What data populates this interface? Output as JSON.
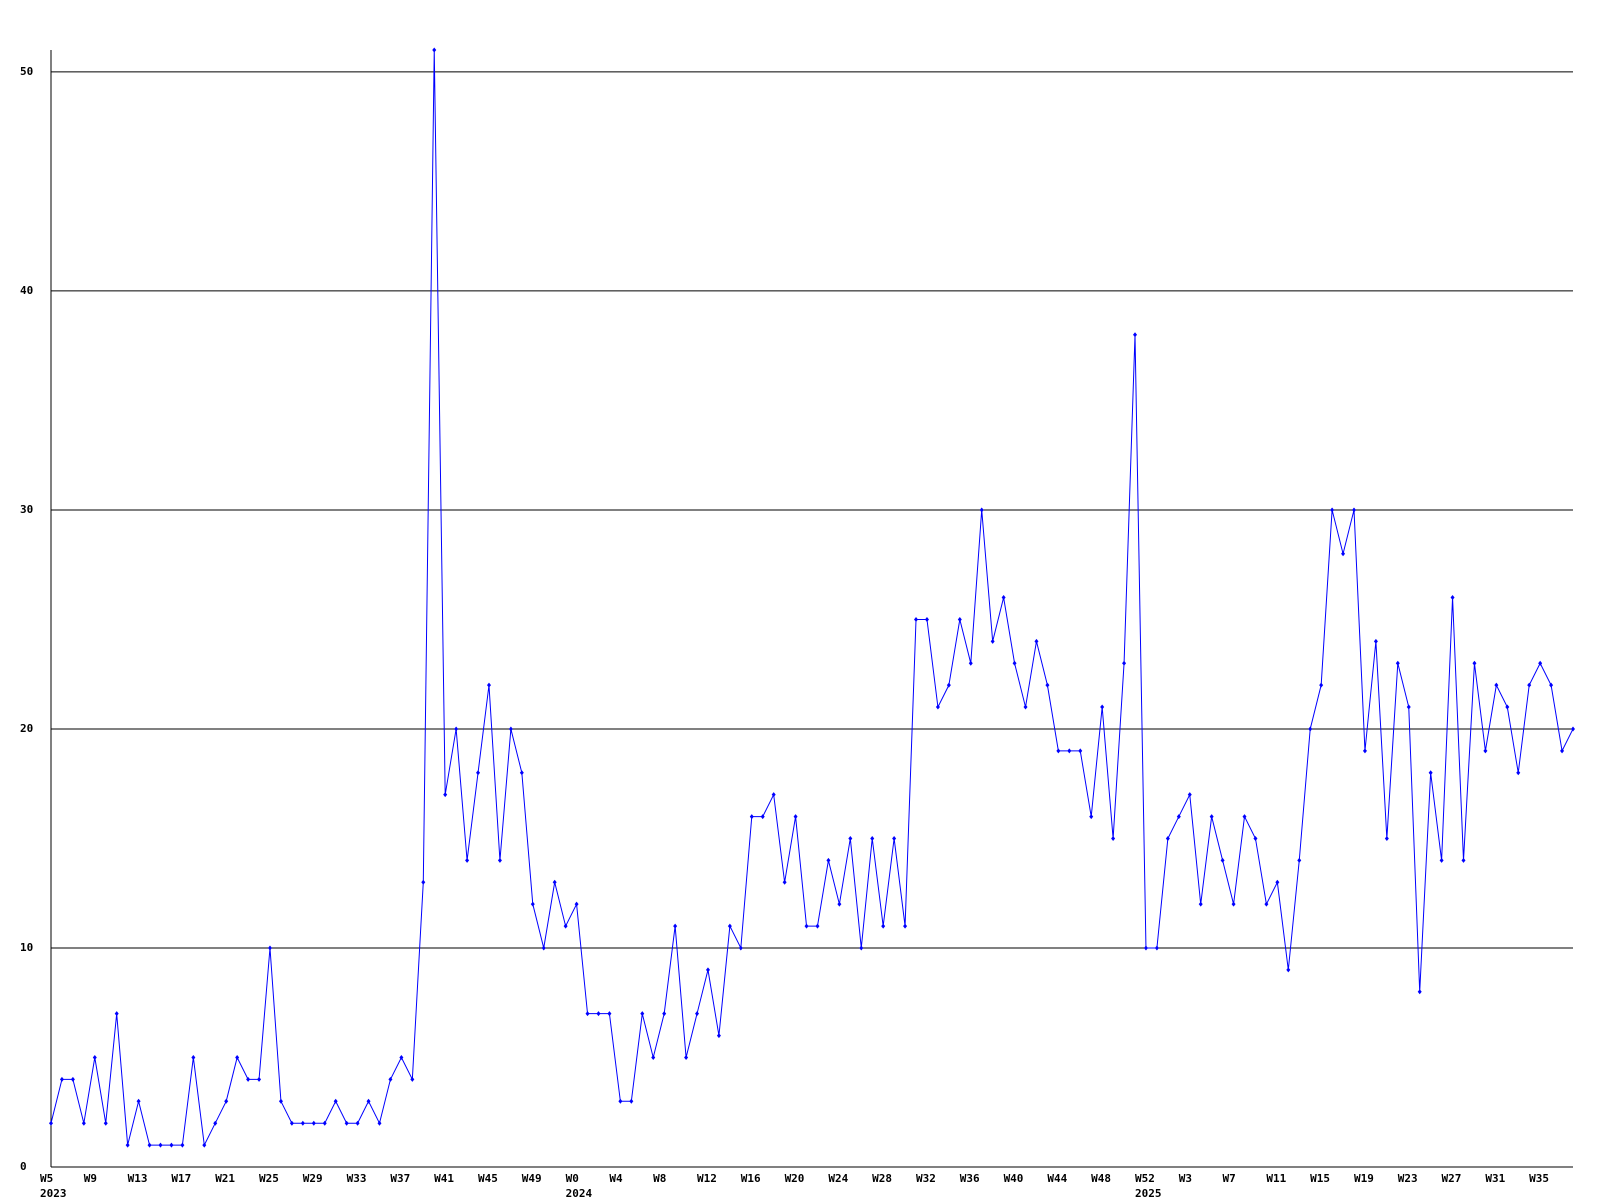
{
  "chart_data": {
    "type": "line",
    "categories": [
      "W5",
      null,
      null,
      null,
      "W9",
      null,
      null,
      null,
      "W13",
      null,
      null,
      null,
      "W17",
      null,
      null,
      null,
      "W21",
      null,
      null,
      null,
      "W25",
      null,
      null,
      null,
      "W29",
      null,
      null,
      null,
      "W33",
      null,
      null,
      null,
      "W37",
      null,
      null,
      null,
      "W41",
      null,
      null,
      null,
      "W45",
      null,
      null,
      null,
      "W49",
      null,
      null,
      null,
      "W0",
      null,
      null,
      null,
      "W4",
      null,
      null,
      null,
      "W8",
      null,
      null,
      null,
      "W12",
      null,
      null,
      null,
      "W16",
      null,
      null,
      null,
      "W20",
      null,
      null,
      null,
      "W24",
      null,
      null,
      null,
      "W28",
      null,
      null,
      null,
      "W32",
      null,
      null,
      null,
      "W36",
      null,
      null,
      null,
      "W40",
      null,
      null,
      null,
      "W44",
      null,
      null,
      null,
      "W48",
      null,
      null,
      null,
      "W52",
      null,
      null,
      null,
      "W3",
      null,
      null,
      null,
      "W7",
      null,
      null,
      null,
      "W11",
      null,
      null,
      null,
      "W15",
      null,
      null,
      null,
      "W19",
      null,
      null,
      null,
      "W23",
      null,
      null,
      null,
      "W27",
      null,
      null,
      null,
      "W31",
      null,
      null,
      null,
      "W35",
      null,
      null,
      null
    ],
    "category_groups": [
      "2023",
      null,
      null,
      null,
      null,
      null,
      null,
      null,
      null,
      null,
      null,
      null,
      null,
      null,
      null,
      null,
      null,
      null,
      null,
      null,
      null,
      null,
      null,
      null,
      null,
      null,
      null,
      null,
      null,
      null,
      null,
      null,
      null,
      null,
      null,
      null,
      null,
      null,
      null,
      null,
      null,
      null,
      null,
      null,
      null,
      null,
      null,
      null,
      "2024",
      null,
      null,
      null,
      null,
      null,
      null,
      null,
      null,
      null,
      null,
      null,
      null,
      null,
      null,
      null,
      null,
      null,
      null,
      null,
      null,
      null,
      null,
      null,
      null,
      null,
      null,
      null,
      null,
      null,
      null,
      null,
      null,
      null,
      null,
      null,
      null,
      null,
      null,
      null,
      null,
      null,
      null,
      null,
      null,
      null,
      null,
      null,
      null,
      null,
      null,
      null,
      "2025",
      null,
      null,
      null,
      null,
      null,
      null,
      null,
      null,
      null,
      null,
      null,
      null,
      null,
      null,
      null,
      null,
      null,
      null,
      null,
      null,
      null,
      null,
      null,
      null,
      null,
      null,
      null,
      null,
      null,
      null,
      null,
      null,
      null,
      null,
      null,
      null,
      null,
      null,
      null
    ],
    "series": [
      {
        "color": "#0000ff",
        "values": [
          2,
          4,
          4,
          2,
          5,
          2,
          7,
          1,
          3,
          1,
          1,
          1,
          1,
          5,
          1,
          2,
          3,
          5,
          4,
          4,
          10,
          3,
          2,
          2,
          2,
          2,
          3,
          2,
          2,
          3,
          2,
          4,
          5,
          4,
          13,
          51,
          17,
          20,
          14,
          18,
          22,
          14,
          20,
          18,
          12,
          10,
          13,
          11,
          12,
          7,
          7,
          7,
          3,
          3,
          7,
          5,
          7,
          11,
          5,
          7,
          9,
          6,
          11,
          10,
          16,
          16,
          17,
          13,
          16,
          11,
          11,
          14,
          12,
          15,
          10,
          15,
          11,
          15,
          11,
          25,
          25,
          21,
          22,
          25,
          23,
          30,
          24,
          26,
          23,
          21,
          24,
          22,
          19,
          19,
          19,
          16,
          21,
          15,
          23,
          38,
          10,
          10,
          15,
          16,
          17,
          12,
          16,
          14,
          12,
          16,
          15,
          12,
          13,
          9,
          14,
          20,
          22,
          30,
          28,
          30,
          19,
          24,
          15,
          23,
          21,
          8,
          18,
          14,
          26,
          14,
          23,
          19,
          22,
          21,
          18,
          22,
          23,
          22,
          19,
          20
        ]
      }
    ],
    "ylim": [
      0,
      51
    ],
    "yticks": [
      0,
      10,
      20,
      30,
      40,
      50
    ],
    "grid": true
  }
}
